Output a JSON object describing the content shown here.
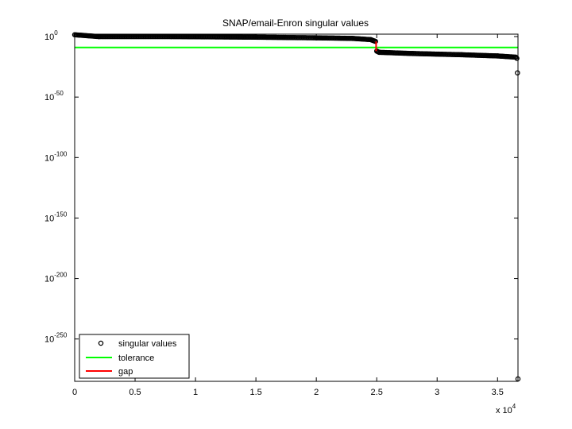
{
  "chart_data": {
    "type": "scatter",
    "title": "SNAP/email-Enron singular values",
    "xlabel": "",
    "ylabel": "",
    "x_scale": "linear",
    "y_scale": "log",
    "xlim": [
      0,
      36692
    ],
    "ylim_exponent": [
      -285,
      2
    ],
    "grid": false,
    "legend_position": "bottom-left",
    "x_exponent_label": "x 10",
    "x_exponent_power": "4",
    "x_ticks": [
      {
        "value": 0,
        "label": "0"
      },
      {
        "value": 5000,
        "label": "0.5"
      },
      {
        "value": 10000,
        "label": "1"
      },
      {
        "value": 15000,
        "label": "1.5"
      },
      {
        "value": 20000,
        "label": "2"
      },
      {
        "value": 25000,
        "label": "2.5"
      },
      {
        "value": 30000,
        "label": "3"
      },
      {
        "value": 35000,
        "label": "3.5"
      }
    ],
    "y_ticks": [
      {
        "exponent": 0,
        "base": "10",
        "power": "0"
      },
      {
        "exponent": -50,
        "base": "10",
        "power": "-50"
      },
      {
        "exponent": -100,
        "base": "10",
        "power": "-100"
      },
      {
        "exponent": -150,
        "base": "10",
        "power": "-150"
      },
      {
        "exponent": -200,
        "base": "10",
        "power": "-200"
      },
      {
        "exponent": -250,
        "base": "10",
        "power": "-250"
      }
    ],
    "series": [
      {
        "name": "singular values",
        "marker": "circle",
        "color": "#000000",
        "segments": [
          {
            "x": [
              1,
              2000,
              8000,
              15000,
              20000,
              23000,
              24500,
              24900
            ],
            "log10_y": [
              1.5,
              0,
              0,
              -0.5,
              -1,
              -1.5,
              -2.5,
              -4
            ]
          },
          {
            "x": [
              25000,
              25200,
              28000,
              32000,
              35000,
              36500
            ],
            "log10_y": [
              -12,
              -13,
              -14,
              -15,
              -16,
              -17
            ]
          }
        ],
        "outliers": [
          {
            "x": 36600,
            "log10_y": -18
          },
          {
            "x": 36650,
            "log10_y": -30
          },
          {
            "x": 36692,
            "log10_y": -283
          }
        ]
      },
      {
        "name": "tolerance",
        "type": "hline",
        "color": "#00ff00",
        "log10_y": -9
      },
      {
        "name": "gap",
        "type": "line",
        "color": "#ff0000",
        "x": [
          24950,
          24950
        ],
        "log10_y": [
          -4,
          -12
        ]
      }
    ]
  }
}
